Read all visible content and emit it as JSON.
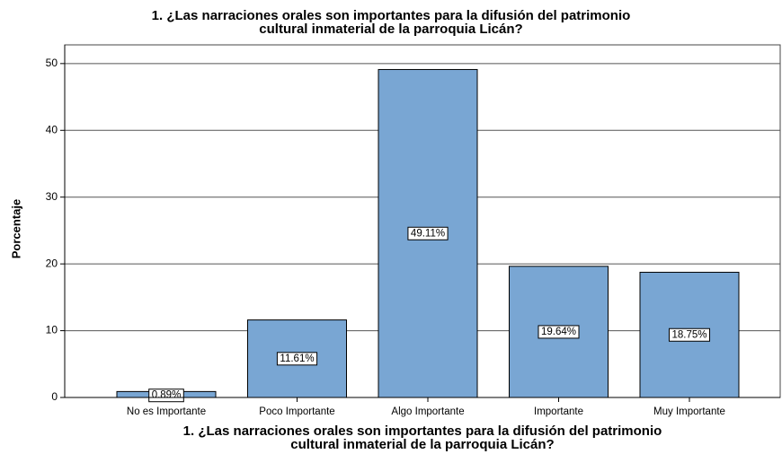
{
  "chart_data": {
    "type": "bar",
    "title": [
      "1. ¿Las narraciones orales son importantes para la difusión del patrimonio",
      "cultural inmaterial de la parroquia Licán?"
    ],
    "x_label": [
      "1. ¿Las narraciones orales son importantes para la difusión del patrimonio",
      "cultural inmaterial de la parroquia Licán?"
    ],
    "y_label": "Porcentaje",
    "categories": [
      "No es Importante",
      "Poco Importante",
      "Algo Importante",
      "Importante",
      "Muy Importante"
    ],
    "values": [
      0.89,
      11.61,
      49.11,
      19.64,
      18.75
    ],
    "value_labels": [
      "0.89%",
      "11.61%",
      "49.11%",
      "19.64%",
      "18.75%"
    ],
    "color": "#79a6d3",
    "ylim": [
      0,
      52.8
    ],
    "yticks": [
      0,
      10,
      20,
      30,
      40,
      50
    ],
    "grid": true
  }
}
